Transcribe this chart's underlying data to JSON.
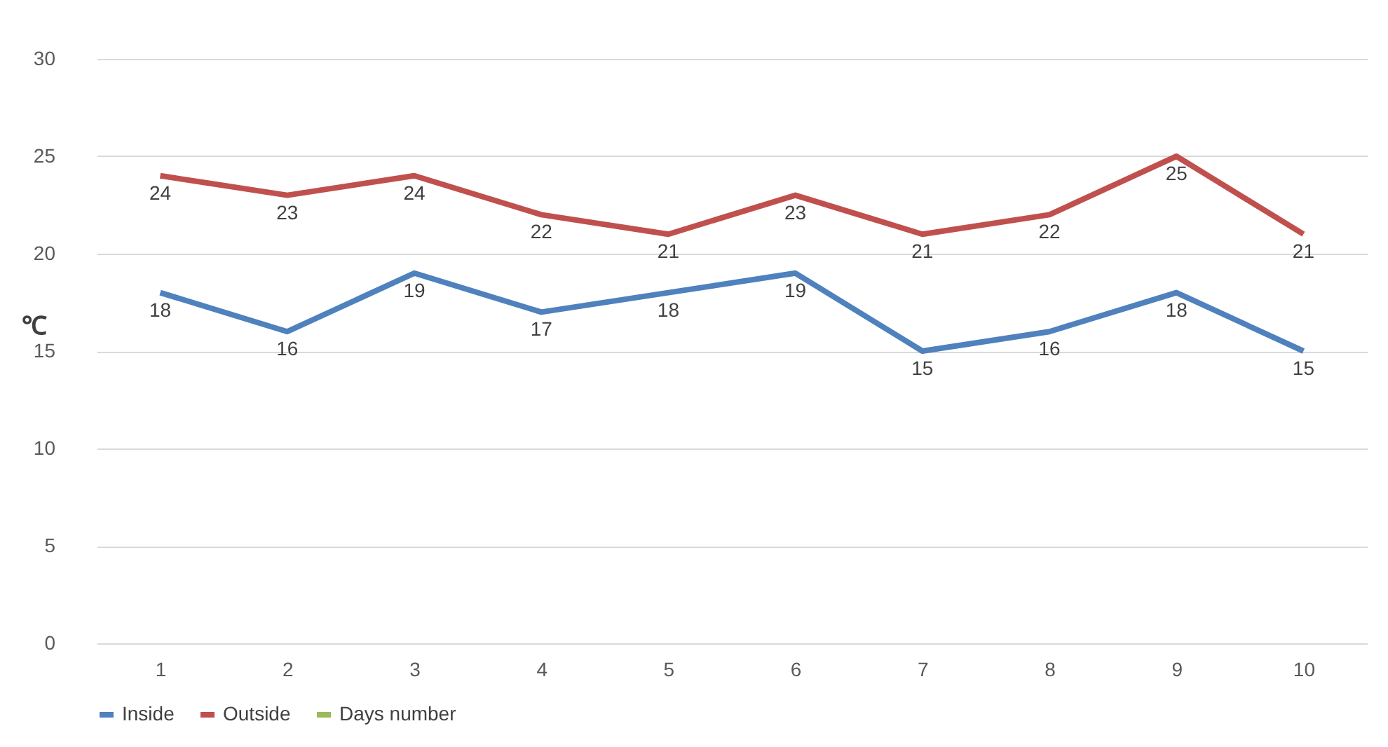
{
  "chart_data": {
    "type": "line",
    "ylabel": "℃",
    "categories": [
      "1",
      "2",
      "3",
      "4",
      "5",
      "6",
      "7",
      "8",
      "9",
      "10"
    ],
    "series": [
      {
        "name": "Inside",
        "color": "#4f81bd",
        "values": [
          18,
          16,
          19,
          17,
          18,
          19,
          15,
          16,
          18,
          15
        ]
      },
      {
        "name": "Outside",
        "color": "#c0504d",
        "values": [
          24,
          23,
          24,
          22,
          21,
          23,
          21,
          22,
          25,
          21
        ]
      },
      {
        "name": "Days number",
        "color": "#9bbb59",
        "values": [
          null,
          null,
          null,
          null,
          null,
          null,
          null,
          null,
          null,
          null
        ]
      }
    ],
    "ylim": [
      0,
      30
    ],
    "yticks": [
      0,
      5,
      10,
      15,
      20,
      25,
      30
    ],
    "grid": "y",
    "legend": "bottom",
    "data_labels": true,
    "line_style": "solid",
    "marker": "none"
  }
}
